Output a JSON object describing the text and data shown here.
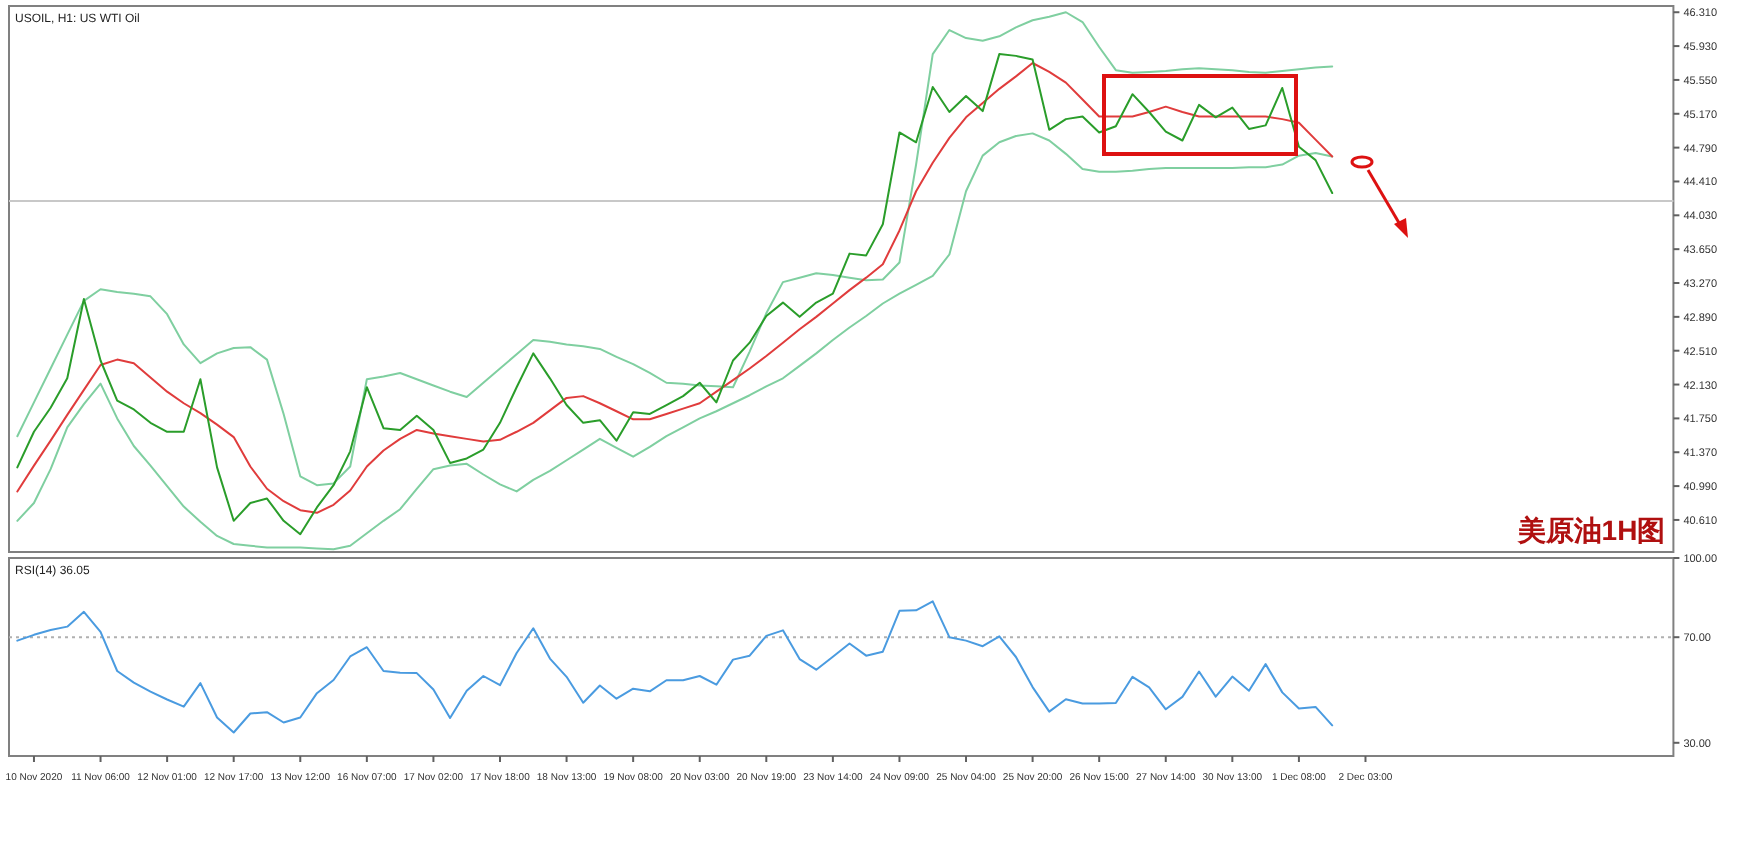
{
  "chart_data": [
    {
      "type": "line",
      "title": "USOIL, H1: US WTI Oil",
      "ylim": [
        40.25,
        46.38
      ],
      "categories": [
        null,
        null,
        null,
        null,
        null,
        null,
        null,
        null,
        null,
        null,
        null,
        null,
        null,
        null,
        null,
        null,
        null,
        null,
        null,
        null,
        null,
        null,
        null,
        null,
        null,
        null,
        null,
        null,
        null,
        null,
        null,
        null,
        null,
        null,
        null,
        null,
        null,
        null,
        null,
        null,
        null,
        null,
        null,
        null,
        null,
        null,
        null,
        null,
        null,
        null,
        null,
        null,
        null,
        null,
        null,
        null,
        null,
        null,
        null,
        null,
        null,
        null,
        null,
        null,
        null,
        null,
        null,
        null,
        null,
        null,
        null,
        null,
        null,
        null,
        null,
        null,
        null,
        null,
        null,
        null,
        null,
        null,
        null,
        null,
        null,
        null,
        null,
        null,
        null,
        null,
        null,
        null,
        null,
        null,
        null,
        null,
        null,
        null,
        null,
        null
      ],
      "yticks": [
        {
          "value": 46.31,
          "label": "46.310"
        },
        {
          "value": 45.93,
          "label": "45.930"
        },
        {
          "value": 45.55,
          "label": "45.550"
        },
        {
          "value": 45.17,
          "label": "45.170"
        },
        {
          "value": 44.79,
          "label": "44.790"
        },
        {
          "value": 44.41,
          "label": "44.410"
        },
        {
          "value": 44.03,
          "label": "44.030"
        },
        {
          "value": 43.65,
          "label": "43.650"
        },
        {
          "value": 43.27,
          "label": "43.270"
        },
        {
          "value": 42.89,
          "label": "42.890"
        },
        {
          "value": 42.51,
          "label": "42.510"
        },
        {
          "value": 42.13,
          "label": "42.130"
        },
        {
          "value": 41.75,
          "label": "41.750"
        },
        {
          "value": 41.37,
          "label": "41.370"
        },
        {
          "value": 40.99,
          "label": "40.990"
        },
        {
          "value": 40.61,
          "label": "40.610"
        }
      ],
      "ref_lines": [
        {
          "axis": "y",
          "value": 44.19,
          "color": "#c8c8c8",
          "line_style": "solid"
        }
      ],
      "annotations": [
        "美原油1H图"
      ],
      "series": [
        {
          "color": "#7fcfa0",
          "values": [
            41.55,
            41.93,
            42.31,
            42.69,
            43.07,
            43.2,
            43.17,
            43.15,
            43.12,
            42.92,
            42.58,
            42.37,
            42.48,
            42.54,
            42.55,
            42.41,
            41.8,
            41.1,
            41.0,
            41.02,
            41.21,
            42.19,
            42.22,
            42.26,
            42.19,
            42.12,
            42.05,
            41.99,
            42.15,
            42.31,
            42.47,
            42.63,
            42.61,
            42.58,
            42.56,
            42.53,
            42.44,
            42.36,
            42.26,
            42.15,
            42.14,
            42.12,
            42.11,
            42.1,
            42.5,
            42.93,
            43.28,
            43.33,
            43.38,
            43.36,
            43.33,
            43.3,
            43.31,
            43.5,
            44.6,
            45.84,
            46.11,
            46.02,
            45.99,
            46.04,
            46.14,
            46.22,
            46.26,
            46.31,
            46.2,
            45.92,
            45.66,
            45.63,
            45.64,
            45.65,
            45.67,
            45.68,
            45.67,
            45.66,
            45.64,
            45.63,
            45.65,
            45.67,
            45.69,
            45.7,
            null,
            null,
            null,
            null,
            null,
            null,
            null,
            null,
            null,
            null,
            null,
            null,
            null,
            null,
            null,
            null,
            null,
            null,
            null,
            null
          ]
        },
        {
          "color": "#7fcfa0",
          "values": [
            40.6,
            40.8,
            41.18,
            41.65,
            41.91,
            42.14,
            41.75,
            41.44,
            41.22,
            40.99,
            40.76,
            40.59,
            40.43,
            40.34,
            40.32,
            40.3,
            40.3,
            40.3,
            40.29,
            40.28,
            40.32,
            40.46,
            40.6,
            40.73,
            40.96,
            41.18,
            41.22,
            41.24,
            41.12,
            41.01,
            40.93,
            41.06,
            41.16,
            41.28,
            41.4,
            41.52,
            41.42,
            41.32,
            41.43,
            41.55,
            41.65,
            41.75,
            41.83,
            41.92,
            42.01,
            42.11,
            42.2,
            42.34,
            42.48,
            42.63,
            42.77,
            42.9,
            43.04,
            43.15,
            43.25,
            43.35,
            43.59,
            44.3,
            44.7,
            44.85,
            44.92,
            44.95,
            44.87,
            44.72,
            44.55,
            44.52,
            44.52,
            44.53,
            44.55,
            44.56,
            44.56,
            44.56,
            44.56,
            44.56,
            44.57,
            44.57,
            44.6,
            44.7,
            44.73,
            44.69,
            null,
            null,
            null,
            null,
            null,
            null,
            null,
            null,
            null,
            null,
            null,
            null,
            null,
            null,
            null,
            null,
            null,
            null,
            null,
            null
          ]
        },
        {
          "color": "#e03c3c",
          "values": [
            40.93,
            41.22,
            41.5,
            41.79,
            42.07,
            42.35,
            42.41,
            42.37,
            42.21,
            42.05,
            41.92,
            41.81,
            41.68,
            41.54,
            41.21,
            40.96,
            40.82,
            40.72,
            40.69,
            40.78,
            40.94,
            41.21,
            41.39,
            41.52,
            41.62,
            41.58,
            41.55,
            41.52,
            41.49,
            41.51,
            41.6,
            41.7,
            41.84,
            41.98,
            42.0,
            41.92,
            41.83,
            41.74,
            41.74,
            41.8,
            41.86,
            41.92,
            42.05,
            42.18,
            42.31,
            42.45,
            42.6,
            42.75,
            42.89,
            43.04,
            43.19,
            43.33,
            43.48,
            43.86,
            44.3,
            44.62,
            44.9,
            45.13,
            45.29,
            45.45,
            45.59,
            45.74,
            45.64,
            45.52,
            45.33,
            45.14,
            45.14,
            45.14,
            45.19,
            45.25,
            45.19,
            45.14,
            45.14,
            45.14,
            45.14,
            45.14,
            45.11,
            45.07,
            44.88,
            44.69,
            null,
            null,
            null,
            null,
            null,
            null,
            null,
            null,
            null,
            null,
            null,
            null,
            null,
            null,
            null,
            null,
            null,
            null,
            null,
            null
          ]
        },
        {
          "color": "#2a9d2a",
          "values": [
            41.2,
            41.6,
            41.87,
            42.2,
            43.09,
            42.4,
            41.95,
            41.85,
            41.7,
            41.6,
            41.6,
            42.19,
            41.2,
            40.6,
            40.8,
            40.85,
            40.6,
            40.45,
            40.75,
            41.0,
            41.38,
            42.1,
            41.64,
            41.62,
            41.78,
            41.62,
            41.25,
            41.3,
            41.4,
            41.7,
            42.1,
            42.48,
            42.2,
            41.9,
            41.7,
            41.73,
            41.5,
            41.82,
            41.8,
            41.9,
            42.0,
            42.15,
            41.93,
            42.4,
            42.6,
            42.9,
            43.05,
            42.89,
            43.05,
            43.15,
            43.6,
            43.58,
            43.93,
            44.96,
            44.85,
            45.47,
            45.19,
            45.37,
            45.2,
            45.84,
            45.82,
            45.78,
            44.99,
            45.11,
            45.14,
            44.96,
            45.03,
            45.39,
            45.19,
            44.97,
            44.87,
            45.27,
            45.13,
            45.24,
            45.0,
            45.04,
            45.46,
            44.8,
            44.65,
            44.28,
            null,
            null,
            null,
            null,
            null,
            null,
            null,
            null,
            null,
            null,
            null,
            null,
            null,
            null,
            null,
            null,
            null,
            null,
            null,
            null
          ]
        }
      ]
    },
    {
      "type": "line",
      "title": "RSI(14) 36.05",
      "ylim": [
        25,
        100
      ],
      "categories": [
        null,
        "10 Nov 2020",
        null,
        null,
        null,
        "11 Nov 06:00",
        null,
        null,
        null,
        "12 Nov 01:00",
        null,
        null,
        null,
        "12 Nov 17:00",
        null,
        null,
        null,
        "13 Nov 12:00",
        null,
        null,
        null,
        "16 Nov 07:00",
        null,
        null,
        null,
        "17 Nov 02:00",
        null,
        null,
        null,
        "17 Nov 18:00",
        null,
        null,
        null,
        "18 Nov 13:00",
        null,
        null,
        null,
        "19 Nov 08:00",
        null,
        null,
        null,
        "20 Nov 03:00",
        null,
        null,
        null,
        "20 Nov 19:00",
        null,
        null,
        null,
        "23 Nov 14:00",
        null,
        null,
        null,
        "24 Nov 09:00",
        null,
        null,
        null,
        "25 Nov 04:00",
        null,
        null,
        null,
        "25 Nov 20:00",
        null,
        null,
        null,
        "26 Nov 15:00",
        null,
        null,
        null,
        "27 Nov 14:00",
        null,
        null,
        null,
        "30 Nov 13:00",
        null,
        null,
        null,
        "1 Dec 08:00",
        null,
        null,
        null,
        "2 Dec 03:00",
        null,
        null,
        null,
        null,
        null,
        null,
        null,
        null,
        null,
        null,
        null,
        null,
        null,
        null,
        null,
        null,
        null,
        null
      ],
      "yticks": [
        {
          "value": 30,
          "label": "30.00"
        },
        {
          "value": 70,
          "label": "70.00"
        },
        {
          "value": 100,
          "label": "100.00"
        }
      ],
      "ref_lines": [
        {
          "axis": "y",
          "value": 70,
          "color": "#b0b0b0",
          "line_style": "dotted"
        }
      ],
      "series": [
        {
          "color": "#4a9be0",
          "values": [
            68.7,
            70.9,
            72.7,
            74.0,
            79.6,
            72.0,
            57.2,
            52.8,
            49.4,
            46.4,
            43.7,
            52.6,
            39.6,
            33.9,
            41.1,
            41.6,
            37.7,
            39.6,
            48.8,
            53.8,
            62.7,
            66.2,
            57.2,
            56.5,
            56.4,
            50.2,
            39.4,
            49.7,
            55.3,
            51.8,
            64.0,
            73.4,
            61.9,
            55.0,
            45.2,
            51.7,
            46.7,
            50.5,
            49.5,
            53.7,
            53.7,
            55.3,
            52.0,
            61.5,
            63.0,
            70.5,
            72.6,
            61.7,
            57.7,
            62.6,
            67.6,
            63.0,
            64.5,
            80.0,
            80.2,
            83.6,
            70.0,
            68.7,
            66.6,
            70.3,
            62.5,
            51.1,
            41.8,
            46.5,
            44.9,
            44.9,
            45.1,
            55.0,
            51.0,
            42.7,
            47.4,
            57.0,
            47.5,
            55.1,
            49.7,
            59.8,
            49.1,
            43.0,
            43.6,
            36.6,
            null,
            null,
            null,
            null,
            null,
            null,
            null,
            null,
            null,
            null,
            null,
            null,
            null,
            null,
            null,
            null,
            null,
            null,
            null,
            null
          ]
        }
      ]
    }
  ]
}
